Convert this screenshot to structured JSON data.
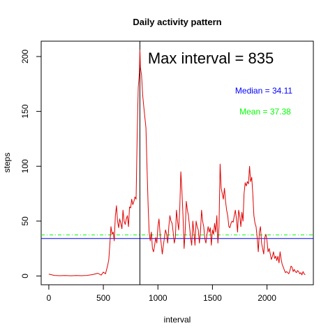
{
  "chart_data": {
    "type": "line",
    "title": "Daily activity pattern",
    "xlabel": "interval",
    "ylabel": "steps",
    "xlim": [
      -70,
      2425
    ],
    "ylim": [
      -8,
      214
    ],
    "x_ticks": [
      0,
      500,
      1000,
      1500,
      2000
    ],
    "y_ticks": [
      0,
      50,
      100,
      150,
      200
    ],
    "grid": false,
    "legend": "none",
    "series": [
      {
        "color": "#e00000",
        "points": [
          [
            0,
            1.7
          ],
          [
            50,
            0.5
          ],
          [
            100,
            0.3
          ],
          [
            150,
            0.4
          ],
          [
            200,
            0.2
          ],
          [
            250,
            0.4
          ],
          [
            300,
            0.3
          ],
          [
            350,
            0.5
          ],
          [
            400,
            1.2
          ],
          [
            450,
            2.5
          ],
          [
            480,
            0.8
          ],
          [
            500,
            3.5
          ],
          [
            520,
            2.0
          ],
          [
            540,
            10
          ],
          [
            550,
            15
          ],
          [
            560,
            30
          ],
          [
            570,
            45
          ],
          [
            580,
            38
          ],
          [
            590,
            40
          ],
          [
            600,
            32
          ],
          [
            610,
            55
          ],
          [
            620,
            64
          ],
          [
            630,
            50
          ],
          [
            640,
            44
          ],
          [
            650,
            52
          ],
          [
            660,
            48
          ],
          [
            670,
            43
          ],
          [
            680,
            60
          ],
          [
            690,
            50
          ],
          [
            700,
            47
          ],
          [
            710,
            52
          ],
          [
            720,
            55
          ],
          [
            730,
            45
          ],
          [
            740,
            63
          ],
          [
            750,
            62
          ],
          [
            760,
            70
          ],
          [
            770,
            65
          ],
          [
            780,
            68
          ],
          [
            790,
            72
          ],
          [
            800,
            70
          ],
          [
            810,
            130
          ],
          [
            820,
            172
          ],
          [
            830,
            185
          ],
          [
            835,
            206
          ],
          [
            840,
            190
          ],
          [
            850,
            183
          ],
          [
            860,
            165
          ],
          [
            870,
            155
          ],
          [
            880,
            145
          ],
          [
            890,
            135
          ],
          [
            900,
            100
          ],
          [
            910,
            65
          ],
          [
            920,
            40
          ],
          [
            930,
            32
          ],
          [
            940,
            40
          ],
          [
            950,
            25
          ],
          [
            960,
            22
          ],
          [
            970,
            28
          ],
          [
            980,
            35
          ],
          [
            990,
            30
          ],
          [
            1000,
            45
          ],
          [
            1010,
            52
          ],
          [
            1020,
            38
          ],
          [
            1030,
            30
          ],
          [
            1040,
            20
          ],
          [
            1050,
            28
          ],
          [
            1060,
            35
          ],
          [
            1070,
            42
          ],
          [
            1080,
            38
          ],
          [
            1090,
            30
          ],
          [
            1100,
            45
          ],
          [
            1110,
            55
          ],
          [
            1120,
            50
          ],
          [
            1130,
            48
          ],
          [
            1140,
            40
          ],
          [
            1150,
            30
          ],
          [
            1160,
            35
          ],
          [
            1170,
            60
          ],
          [
            1180,
            50
          ],
          [
            1190,
            42
          ],
          [
            1200,
            60
          ],
          [
            1210,
            95
          ],
          [
            1220,
            78
          ],
          [
            1230,
            55
          ],
          [
            1240,
            25
          ],
          [
            1250,
            40
          ],
          [
            1260,
            68
          ],
          [
            1270,
            60
          ],
          [
            1280,
            55
          ],
          [
            1290,
            45
          ],
          [
            1300,
            35
          ],
          [
            1310,
            28
          ],
          [
            1320,
            50
          ],
          [
            1330,
            40
          ],
          [
            1340,
            28
          ],
          [
            1350,
            50
          ],
          [
            1360,
            45
          ],
          [
            1370,
            42
          ],
          [
            1380,
            30
          ],
          [
            1390,
            40
          ],
          [
            1400,
            60
          ],
          [
            1410,
            50
          ],
          [
            1420,
            45
          ],
          [
            1430,
            34
          ],
          [
            1440,
            30
          ],
          [
            1450,
            38
          ],
          [
            1460,
            45
          ],
          [
            1470,
            40
          ],
          [
            1480,
            44
          ],
          [
            1490,
            28
          ],
          [
            1500,
            42
          ],
          [
            1510,
            38
          ],
          [
            1520,
            48
          ],
          [
            1530,
            40
          ],
          [
            1540,
            55
          ],
          [
            1550,
            30
          ],
          [
            1560,
            45
          ],
          [
            1570,
            102
          ],
          [
            1580,
            80
          ],
          [
            1590,
            75
          ],
          [
            1600,
            70
          ],
          [
            1610,
            80
          ],
          [
            1620,
            68
          ],
          [
            1630,
            60
          ],
          [
            1640,
            55
          ],
          [
            1650,
            45
          ],
          [
            1660,
            44
          ],
          [
            1670,
            48
          ],
          [
            1680,
            50
          ],
          [
            1690,
            49
          ],
          [
            1700,
            55
          ],
          [
            1710,
            60
          ],
          [
            1720,
            52
          ],
          [
            1730,
            40
          ],
          [
            1740,
            60
          ],
          [
            1750,
            55
          ],
          [
            1760,
            45
          ],
          [
            1770,
            58
          ],
          [
            1780,
            50
          ],
          [
            1790,
            75
          ],
          [
            1800,
            85
          ],
          [
            1810,
            82
          ],
          [
            1820,
            86
          ],
          [
            1830,
            84
          ],
          [
            1840,
            100
          ],
          [
            1850,
            86
          ],
          [
            1860,
            90
          ],
          [
            1870,
            75
          ],
          [
            1880,
            55
          ],
          [
            1890,
            48
          ],
          [
            1900,
            45
          ],
          [
            1910,
            35
          ],
          [
            1920,
            22
          ],
          [
            1930,
            40
          ],
          [
            1940,
            45
          ],
          [
            1950,
            30
          ],
          [
            1960,
            25
          ],
          [
            1970,
            20
          ],
          [
            1980,
            35
          ],
          [
            1990,
            38
          ],
          [
            2000,
            32
          ],
          [
            2010,
            22
          ],
          [
            2020,
            25
          ],
          [
            2030,
            20
          ],
          [
            2040,
            15
          ],
          [
            2050,
            18
          ],
          [
            2060,
            22
          ],
          [
            2070,
            16
          ],
          [
            2080,
            18
          ],
          [
            2090,
            14
          ],
          [
            2100,
            18
          ],
          [
            2110,
            12
          ],
          [
            2120,
            22
          ],
          [
            2130,
            15
          ],
          [
            2140,
            10
          ],
          [
            2150,
            8
          ],
          [
            2160,
            5
          ],
          [
            2170,
            3
          ],
          [
            2180,
            4
          ],
          [
            2190,
            3
          ],
          [
            2200,
            2
          ],
          [
            2210,
            5
          ],
          [
            2220,
            9
          ],
          [
            2230,
            8
          ],
          [
            2240,
            4
          ],
          [
            2250,
            6
          ],
          [
            2260,
            4
          ],
          [
            2270,
            3
          ],
          [
            2280,
            5
          ],
          [
            2290,
            4
          ],
          [
            2300,
            2
          ],
          [
            2310,
            3
          ],
          [
            2320,
            1
          ],
          [
            2330,
            4
          ],
          [
            2340,
            2
          ],
          [
            2350,
            1.1
          ]
        ]
      }
    ],
    "reference_lines": {
      "vertical": {
        "x": 835,
        "color": "#000000"
      },
      "horizontal": [
        {
          "y": 34.11,
          "color": "#0000ff",
          "style": "solid"
        },
        {
          "y": 37.38,
          "color": "#00ff00",
          "style": "dashed"
        }
      ]
    },
    "annotations": {
      "max": {
        "label": "Max interval =  835",
        "color": "#000000"
      },
      "median": {
        "label": "Median =  34.11",
        "color": "#0000ff"
      },
      "mean": {
        "label": "Mean =  37.38",
        "color": "#00ff00"
      }
    }
  }
}
